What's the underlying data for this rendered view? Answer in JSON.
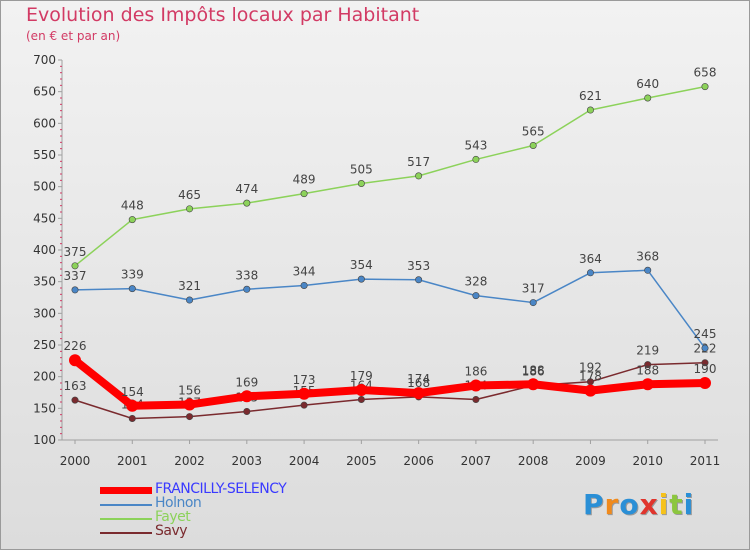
{
  "title": "Evolution des Impôts locaux par Habitant",
  "subtitle": "(en € et par an)",
  "logo": {
    "letters": [
      "P",
      "r",
      "o",
      "x",
      "i",
      "t",
      "i"
    ],
    "colors": [
      "#2a8fd6",
      "#f08a1c",
      "#2a8fd6",
      "#e0342c",
      "#f6c21a",
      "#8cc63f",
      "#2a8fd6"
    ]
  },
  "chart_data": {
    "type": "line",
    "categories": [
      "2000",
      "2001",
      "2002",
      "2003",
      "2004",
      "2005",
      "2006",
      "2007",
      "2008",
      "2009",
      "2010",
      "2011"
    ],
    "ylim": [
      100,
      700
    ],
    "yticks": [
      "100",
      "150",
      "200",
      "250",
      "300",
      "350",
      "400",
      "450",
      "500",
      "550",
      "600",
      "650",
      "700"
    ],
    "grid": false,
    "legend_position": "bottom-left",
    "series": [
      {
        "name": "FRANCILLY-SELENCY",
        "color": "#ff0000",
        "values": [
          226,
          154,
          156,
          169,
          173,
          179,
          174,
          186,
          188,
          178,
          188,
          190
        ]
      },
      {
        "name": "Holnon",
        "color": "#4a86c6",
        "values": [
          337,
          339,
          321,
          338,
          344,
          354,
          353,
          328,
          317,
          364,
          368,
          245
        ]
      },
      {
        "name": "Fayet",
        "color": "#8cd25a",
        "values": [
          375,
          448,
          465,
          474,
          489,
          505,
          517,
          543,
          565,
          621,
          640,
          658
        ]
      },
      {
        "name": "Savy",
        "color": "#7a2a2e",
        "values": [
          163,
          134,
          137,
          145,
          155,
          164,
          168,
          164,
          186,
          192,
          219,
          222
        ]
      }
    ]
  }
}
